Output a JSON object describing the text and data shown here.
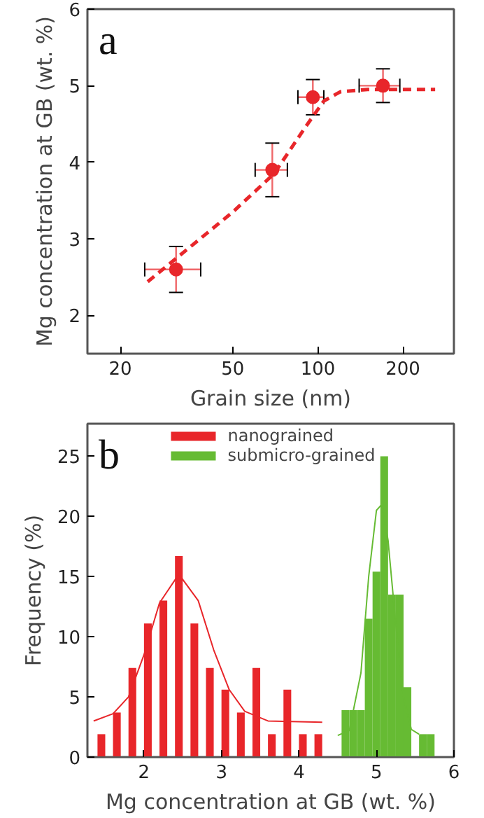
{
  "chart_data": [
    {
      "type": "scatter",
      "xlabel": "Grain size (nm)",
      "ylabel": "Mg concentration at GB (wt. %)",
      "annotations": [
        "a"
      ],
      "log": "x",
      "xlim": [
        15.3,
        303
      ],
      "ylim": [
        1.5,
        6
      ],
      "xticks": [
        20,
        50,
        100,
        200
      ],
      "yticks": [
        2,
        3,
        4,
        5,
        6
      ],
      "grid": false,
      "legend": false,
      "series": [
        {
          "marker": "circle",
          "color": "#e8262a",
          "x": [
            31.5,
            69,
            96,
            170
          ],
          "values": [
            2.6,
            3.9,
            4.85,
            5.0
          ],
          "errors": [
            0.3,
            0.35,
            0.23,
            0.22
          ],
          "xerrors": [
            [
              24.4,
              38.5
            ],
            [
              60,
              78
            ],
            [
              85,
              105
            ],
            [
              140,
              195
            ]
          ]
        },
        {
          "type": "line",
          "color": "#e8262a",
          "line_style": "dashed",
          "x": [
            25,
            50,
            70,
            90,
            105,
            120,
            150,
            260
          ],
          "values": [
            2.44,
            3.35,
            3.85,
            4.45,
            4.8,
            4.92,
            4.95,
            4.95
          ]
        }
      ]
    },
    {
      "type": "histogram",
      "xlabel": "Mg concentration at GB (wt. %)",
      "ylabel": "Frequency (%)",
      "annotations": [
        "b"
      ],
      "xlim": [
        1.27,
        6
      ],
      "ylim": [
        0,
        27.7
      ],
      "xticks": [
        2,
        3,
        4,
        5,
        6
      ],
      "yticks": [
        0,
        5,
        10,
        15,
        20,
        25
      ],
      "grid": false,
      "legend": "top",
      "series": [
        {
          "type": "bar",
          "name": "nanograined",
          "color": "#e8262a",
          "x": [
            1.45,
            1.65,
            1.85,
            2.05,
            2.25,
            2.45,
            2.65,
            2.85,
            3.05,
            3.25,
            3.45,
            3.65,
            3.85,
            4.05,
            4.25
          ],
          "values": [
            1.9,
            3.7,
            7.4,
            11.1,
            13.0,
            16.7,
            11.1,
            7.4,
            5.6,
            3.7,
            7.4,
            1.9,
            5.6,
            1.9,
            1.9
          ]
        },
        {
          "name": "submicro-grained",
          "color": "#66bb33",
          "bins": [
            4.55,
            4.65,
            4.75,
            4.85,
            4.95,
            5.05,
            5.15,
            5.25,
            5.35,
            5.45,
            5.55,
            5.65,
            5.75
          ],
          "values": [
            3.9,
            3.9,
            3.9,
            11.5,
            15.4,
            25.0,
            13.5,
            13.5,
            5.8,
            0,
            1.9,
            1.9
          ]
        },
        {
          "type": "line",
          "color": "#e8262a",
          "x": [
            1.35,
            1.6,
            1.8,
            2.0,
            2.2,
            2.45,
            2.7,
            2.9,
            3.1,
            3.3,
            3.6,
            4.3
          ],
          "values": [
            3.0,
            3.6,
            5.0,
            8.5,
            12.8,
            15.2,
            13.0,
            8.9,
            5.6,
            3.8,
            3.0,
            2.9
          ]
        },
        {
          "type": "line",
          "color": "#66bb33",
          "x": [
            4.5,
            4.65,
            4.8,
            4.9,
            5.0,
            5.07,
            5.15,
            5.25,
            5.35,
            5.45,
            5.55
          ],
          "values": [
            1.8,
            2.2,
            7.0,
            15.0,
            20.5,
            21.0,
            18.0,
            11.0,
            5.0,
            2.3,
            1.9
          ]
        }
      ]
    }
  ]
}
